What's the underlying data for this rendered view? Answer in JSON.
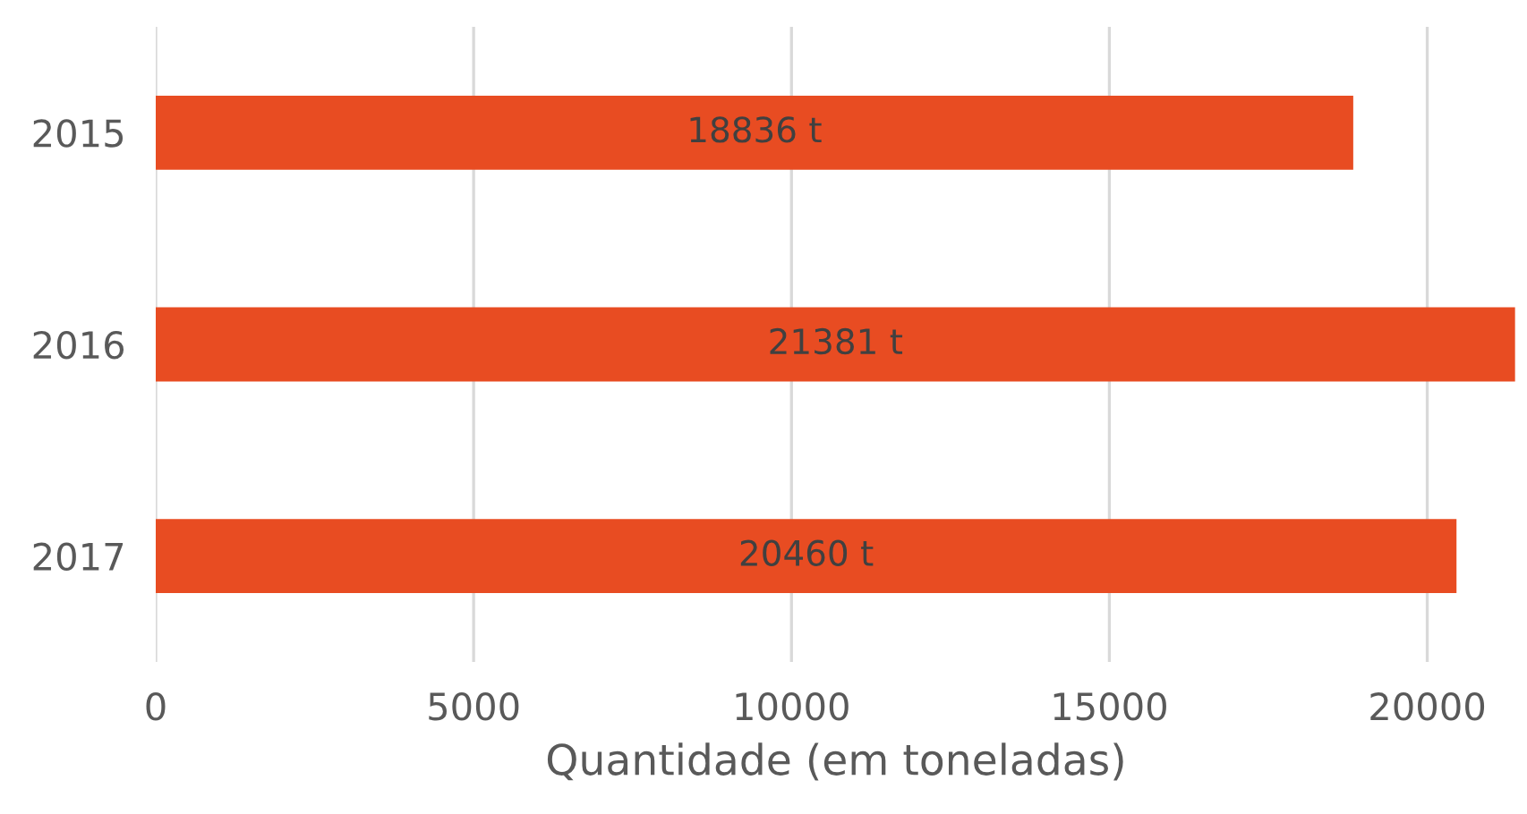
{
  "chart_data": {
    "type": "bar",
    "orientation": "horizontal",
    "categories": [
      "2015",
      "2016",
      "2017"
    ],
    "values": [
      18836,
      21381,
      20460
    ],
    "color": "#e84c22",
    "value_labels": [
      "18836 t",
      "21381 t",
      "20460 t"
    ],
    "xlabel": "Quantidade (em toneladas)",
    "xlim": [
      0,
      21400
    ],
    "xticks": [
      0,
      5000,
      10000,
      15000,
      20000
    ],
    "grid": "x",
    "legend": false
  }
}
